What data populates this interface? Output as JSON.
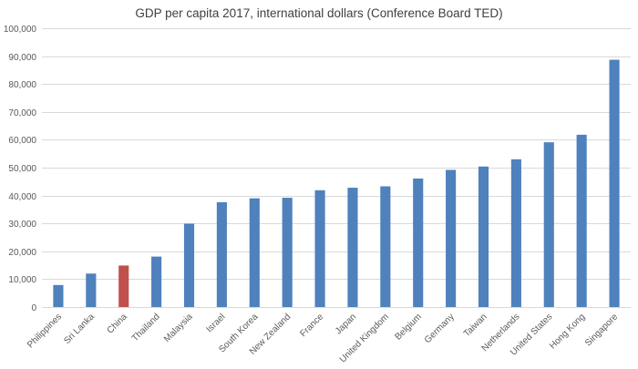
{
  "chart_data": {
    "type": "bar",
    "title": "GDP per capita 2017, international dollars (Conference Board TED)",
    "xlabel": "",
    "ylabel": "",
    "ylim": [
      0,
      100000
    ],
    "ytick_step": 10000,
    "ytick_labels": [
      "0",
      "10,000",
      "20,000",
      "30,000",
      "40,000",
      "50,000",
      "60,000",
      "70,000",
      "80,000",
      "90,000",
      "100,000"
    ],
    "grid": true,
    "legend": "none",
    "categories": [
      "Philippines",
      "Sri Lanka",
      "China",
      "Thailand",
      "Malaysia",
      "Israel",
      "South Korea",
      "New Zealand",
      "France",
      "Japan",
      "United Kingdom",
      "Belgium",
      "Germany",
      "Taiwan",
      "Netherlands",
      "United States",
      "Hong Kong",
      "Singapore"
    ],
    "values": [
      7900,
      12000,
      14900,
      18100,
      29900,
      37600,
      39000,
      39200,
      41900,
      42800,
      43300,
      46100,
      49200,
      50400,
      53000,
      59100,
      61800,
      88700
    ],
    "bar_colors": [
      "#4f81bd",
      "#4f81bd",
      "#c0504d",
      "#4f81bd",
      "#4f81bd",
      "#4f81bd",
      "#4f81bd",
      "#4f81bd",
      "#4f81bd",
      "#4f81bd",
      "#4f81bd",
      "#4f81bd",
      "#4f81bd",
      "#4f81bd",
      "#4f81bd",
      "#4f81bd",
      "#4f81bd",
      "#4f81bd"
    ]
  }
}
